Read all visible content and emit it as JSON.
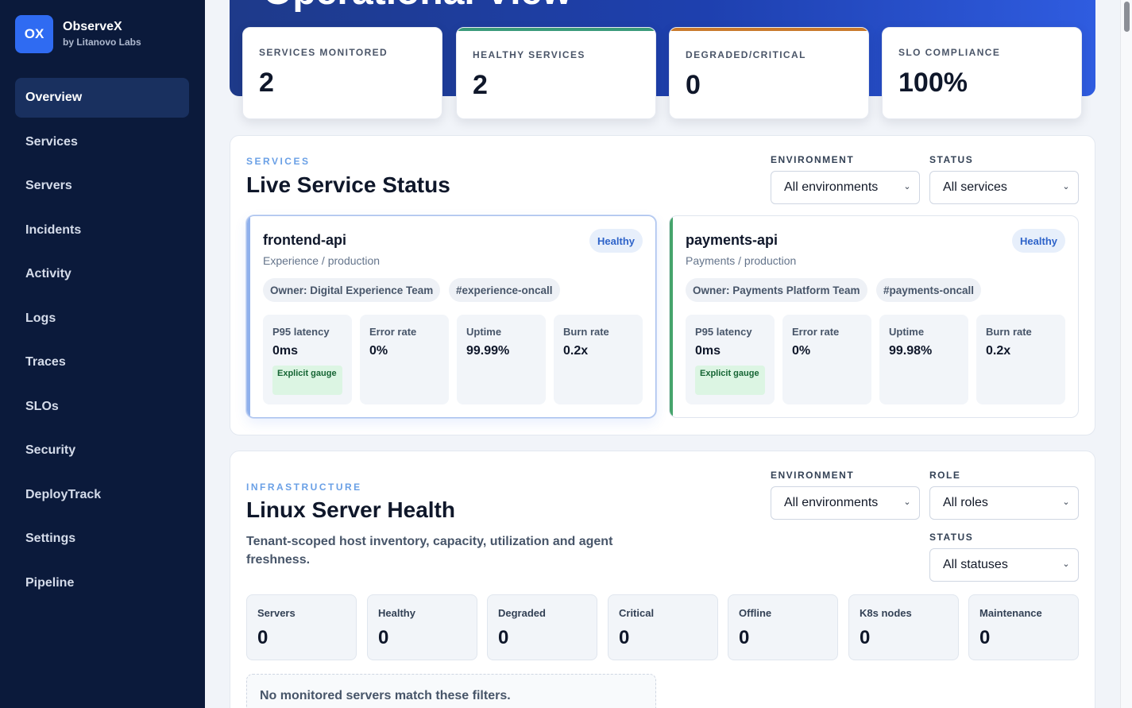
{
  "app": {
    "logo": "OX",
    "name": "ObserveX",
    "by": "by Litanovo Labs"
  },
  "nav": [
    {
      "label": "Overview",
      "active": true
    },
    {
      "label": "Services"
    },
    {
      "label": "Servers"
    },
    {
      "label": "Incidents"
    },
    {
      "label": "Activity"
    },
    {
      "label": "Logs"
    },
    {
      "label": "Traces"
    },
    {
      "label": "SLOs"
    },
    {
      "label": "Security"
    },
    {
      "label": "DeployTrack"
    },
    {
      "label": "Settings"
    },
    {
      "label": "Pipeline"
    }
  ],
  "hero": {
    "title": "Operational View"
  },
  "kpis": [
    {
      "label": "SERVICES MONITORED",
      "value": "2",
      "accent": ""
    },
    {
      "label": "HEALTHY SERVICES",
      "value": "2",
      "accent": "#3a9a7a"
    },
    {
      "label": "DEGRADED/CRITICAL",
      "value": "0",
      "accent": "#c97a2c"
    },
    {
      "label": "SLO COMPLIANCE",
      "value": "100%",
      "accent": ""
    }
  ],
  "services_panel": {
    "eyebrow": "SERVICES",
    "title": "Live Service Status",
    "env_label": "ENVIRONMENT",
    "env_value": "All environments",
    "status_label": "STATUS",
    "status_value": "All services",
    "cards": [
      {
        "name": "frontend-api",
        "sub": "Experience / production",
        "badge": "Healthy",
        "owner": "Owner: Digital Experience Team",
        "channel": "#experience-oncall",
        "accent": "#8fb0ec",
        "metrics": [
          {
            "label": "P95 latency",
            "value": "0ms",
            "tag": "Explicit gauge"
          },
          {
            "label": "Error rate",
            "value": "0%"
          },
          {
            "label": "Uptime",
            "value": "99.99%"
          },
          {
            "label": "Burn rate",
            "value": "0.2x"
          }
        ]
      },
      {
        "name": "payments-api",
        "sub": "Payments / production",
        "badge": "Healthy",
        "owner": "Owner: Payments Platform Team",
        "channel": "#payments-oncall",
        "accent": "#46a46c",
        "metrics": [
          {
            "label": "P95 latency",
            "value": "0ms",
            "tag": "Explicit gauge"
          },
          {
            "label": "Error rate",
            "value": "0%"
          },
          {
            "label": "Uptime",
            "value": "99.98%"
          },
          {
            "label": "Burn rate",
            "value": "0.2x"
          }
        ]
      }
    ]
  },
  "infra_panel": {
    "eyebrow": "INFRASTRUCTURE",
    "title": "Linux Server Health",
    "desc": "Tenant-scoped host inventory, capacity, utilization and agent freshness.",
    "env_label": "ENVIRONMENT",
    "env_value": "All environments",
    "role_label": "ROLE",
    "role_value": "All roles",
    "status_label": "STATUS",
    "status_value": "All statuses",
    "stats": [
      {
        "label": "Servers",
        "value": "0"
      },
      {
        "label": "Healthy",
        "value": "0"
      },
      {
        "label": "Degraded",
        "value": "0"
      },
      {
        "label": "Critical",
        "value": "0"
      },
      {
        "label": "Offline",
        "value": "0"
      },
      {
        "label": "K8s nodes",
        "value": "0"
      },
      {
        "label": "Maintenance",
        "value": "0"
      }
    ],
    "empty": "No monitored servers match these filters."
  }
}
